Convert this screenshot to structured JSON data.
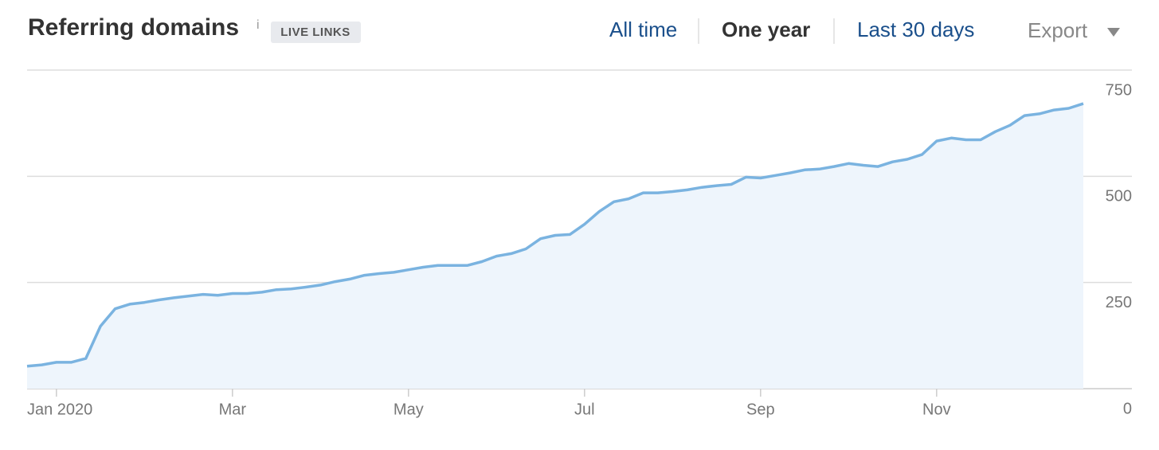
{
  "header": {
    "title": "Referring domains",
    "info": "i",
    "badge": "LIVE LINKS",
    "periods": [
      "All time",
      "One year",
      "Last 30 days"
    ],
    "export": "Export"
  },
  "chart_data": {
    "type": "area",
    "categories": [
      null,
      null,
      "Jan 2020",
      null,
      null,
      null,
      null,
      null,
      null,
      null,
      null,
      null,
      null,
      null,
      "Mar",
      null,
      null,
      null,
      null,
      null,
      null,
      null,
      null,
      null,
      null,
      null,
      "May",
      null,
      null,
      null,
      null,
      null,
      null,
      null,
      null,
      null,
      null,
      null,
      "Jul",
      null,
      null,
      null,
      null,
      null,
      null,
      null,
      null,
      null,
      null,
      null,
      "Sep",
      null,
      null,
      null,
      null,
      null,
      null,
      null,
      null,
      null,
      null,
      null,
      "Nov",
      null,
      null,
      null,
      null,
      null,
      null,
      null,
      null,
      null,
      null
    ],
    "series": [
      {
        "color": "#7ab3e0",
        "fill": "#eef5fc",
        "values": [
          53,
          56,
          62,
          62,
          71,
          147,
          188,
          199,
          203,
          209,
          214,
          218,
          222,
          220,
          224,
          224,
          227,
          233,
          235,
          239,
          244,
          252,
          258,
          267,
          271,
          274,
          280,
          286,
          290,
          290,
          290,
          299,
          312,
          318,
          329,
          353,
          361,
          363,
          387,
          417,
          440,
          447,
          461,
          461,
          464,
          468,
          474,
          478,
          481,
          498,
          496,
          502,
          508,
          515,
          517,
          523,
          530,
          526,
          523,
          534,
          540,
          551,
          583,
          590,
          586,
          586,
          605,
          620,
          643,
          647,
          656,
          660,
          671
        ]
      }
    ],
    "ylim": [
      0,
      750
    ],
    "yticks": [
      0,
      250,
      500,
      750
    ],
    "grid": true
  }
}
